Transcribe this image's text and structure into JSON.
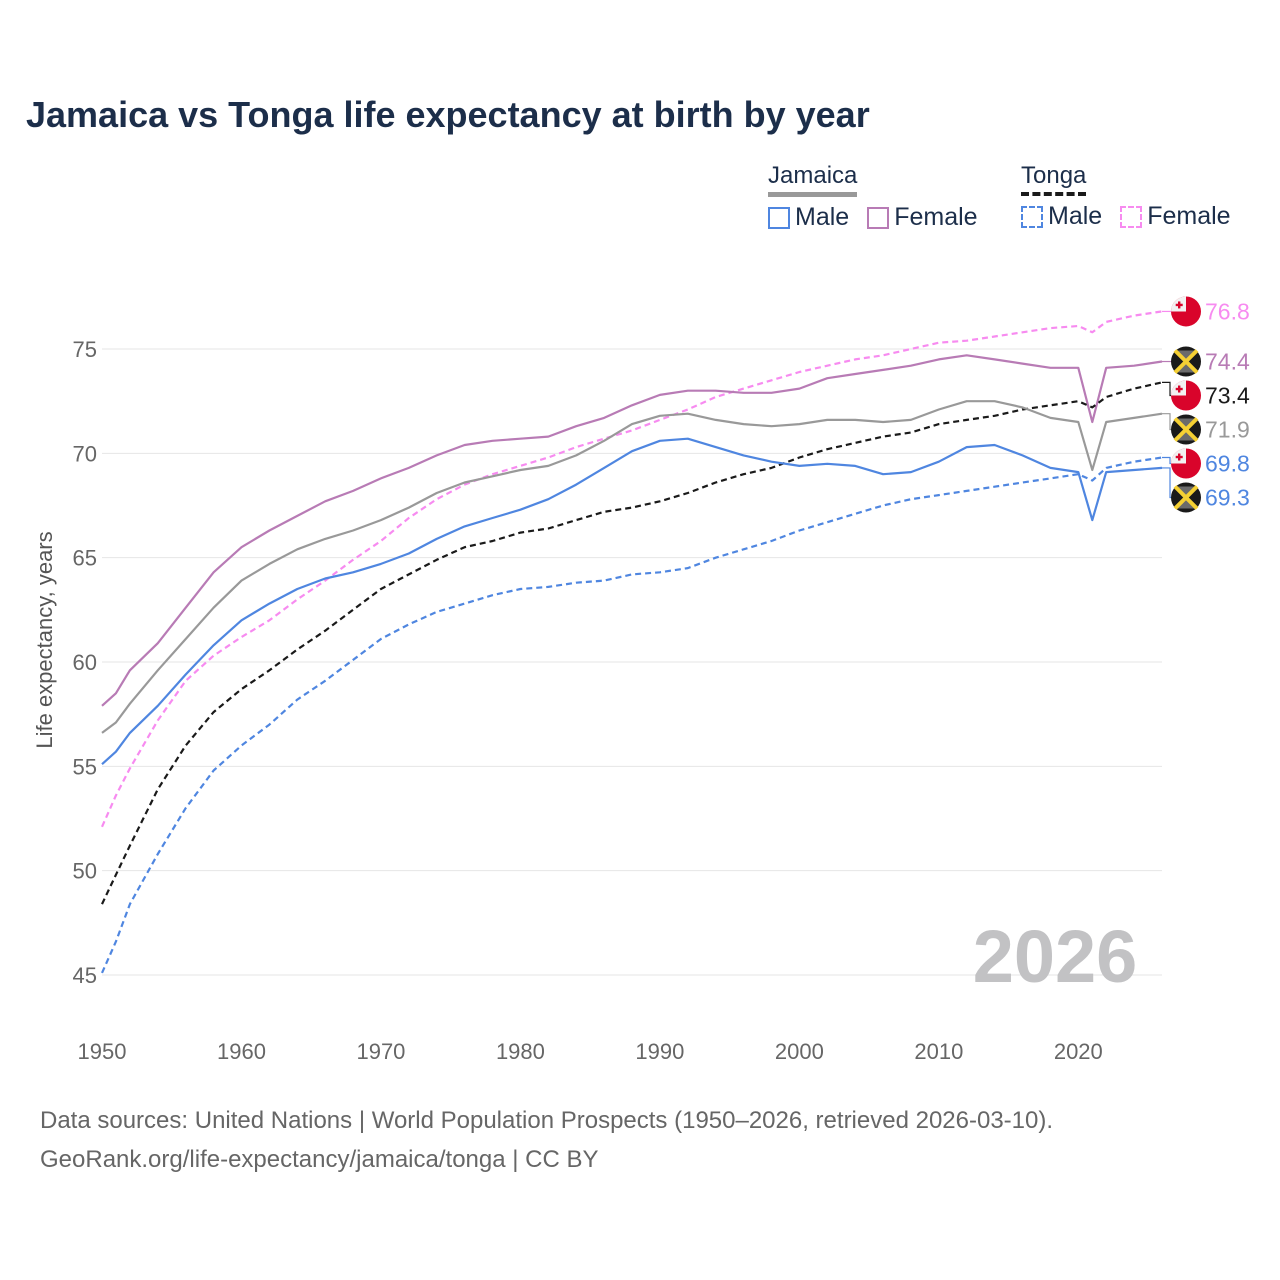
{
  "chart_data": {
    "type": "line",
    "title": "Jamaica vs Tonga life expectancy at birth by year",
    "xlabel": "",
    "ylabel": "Life expectancy, years",
    "xlim": [
      1950,
      2026
    ],
    "ylim": [
      45,
      77
    ],
    "x_ticks": [
      "1950",
      "1960",
      "1970",
      "1980",
      "1990",
      "2000",
      "2010",
      "2020"
    ],
    "y_ticks": [
      "45",
      "50",
      "55",
      "60",
      "65",
      "70",
      "75"
    ],
    "grid": true,
    "watermark_year": "2026",
    "legend": {
      "groups": [
        {
          "country": "Jamaica",
          "items": [
            "Male",
            "Female"
          ]
        },
        {
          "country": "Tonga",
          "items": [
            "Male",
            "Female"
          ]
        }
      ],
      "placement": "top-right"
    },
    "x": [
      1950,
      1951,
      1952,
      1954,
      1956,
      1958,
      1960,
      1962,
      1964,
      1966,
      1968,
      1970,
      1972,
      1974,
      1976,
      1978,
      1980,
      1982,
      1984,
      1986,
      1988,
      1990,
      1992,
      1994,
      1996,
      1998,
      2000,
      2002,
      2004,
      2006,
      2008,
      2010,
      2012,
      2014,
      2016,
      2018,
      2020,
      2021,
      2022,
      2024,
      2026
    ],
    "series": [
      {
        "name": "Tonga Female",
        "country": "Tonga",
        "color": "#f78bf0",
        "dash": true,
        "end_label": "76.8",
        "values": [
          52.1,
          53.6,
          54.9,
          57.2,
          59.1,
          60.3,
          61.2,
          62.0,
          63.0,
          63.9,
          64.9,
          65.8,
          66.9,
          67.8,
          68.5,
          69.0,
          69.4,
          69.8,
          70.3,
          70.7,
          71.1,
          71.6,
          72.1,
          72.7,
          73.1,
          73.5,
          73.9,
          74.2,
          74.5,
          74.7,
          75.0,
          75.3,
          75.4,
          75.6,
          75.8,
          76.0,
          76.1,
          75.8,
          76.3,
          76.6,
          76.8
        ]
      },
      {
        "name": "Jamaica Female",
        "country": "Jamaica",
        "color": "#b87bb5",
        "dash": false,
        "end_label": "74.4",
        "values": [
          57.9,
          58.5,
          59.6,
          60.9,
          62.6,
          64.3,
          65.5,
          66.3,
          67.0,
          67.7,
          68.2,
          68.8,
          69.3,
          69.9,
          70.4,
          70.6,
          70.7,
          70.8,
          71.3,
          71.7,
          72.3,
          72.8,
          73.0,
          73.0,
          72.9,
          72.9,
          73.1,
          73.6,
          73.8,
          74.0,
          74.2,
          74.5,
          74.7,
          74.5,
          74.3,
          74.1,
          74.1,
          71.5,
          74.1,
          74.2,
          74.4
        ]
      },
      {
        "name": "Tonga",
        "country": "Tonga",
        "color": "#1a1a1a",
        "dash": true,
        "end_label": "73.4",
        "values": [
          48.4,
          49.8,
          51.2,
          53.9,
          56.0,
          57.6,
          58.7,
          59.6,
          60.6,
          61.5,
          62.5,
          63.5,
          64.2,
          64.9,
          65.5,
          65.8,
          66.2,
          66.4,
          66.8,
          67.2,
          67.4,
          67.7,
          68.1,
          68.6,
          69.0,
          69.3,
          69.8,
          70.2,
          70.5,
          70.8,
          71.0,
          71.4,
          71.6,
          71.8,
          72.1,
          72.3,
          72.5,
          72.2,
          72.7,
          73.1,
          73.4
        ]
      },
      {
        "name": "Jamaica",
        "country": "Jamaica",
        "color": "#999999",
        "dash": false,
        "end_label": "71.9",
        "values": [
          56.6,
          57.1,
          58.0,
          59.6,
          61.1,
          62.6,
          63.9,
          64.7,
          65.4,
          65.9,
          66.3,
          66.8,
          67.4,
          68.1,
          68.6,
          68.9,
          69.2,
          69.4,
          69.9,
          70.6,
          71.4,
          71.8,
          71.9,
          71.6,
          71.4,
          71.3,
          71.4,
          71.6,
          71.6,
          71.5,
          71.6,
          72.1,
          72.5,
          72.5,
          72.2,
          71.7,
          71.5,
          69.2,
          71.5,
          71.7,
          71.9
        ]
      },
      {
        "name": "Tonga Male",
        "country": "Tonga",
        "color": "#4f86e0",
        "dash": true,
        "end_label": "69.8",
        "values": [
          45.1,
          46.6,
          48.4,
          50.8,
          53.0,
          54.8,
          56.0,
          57.0,
          58.2,
          59.1,
          60.1,
          61.1,
          61.8,
          62.4,
          62.8,
          63.2,
          63.5,
          63.6,
          63.8,
          63.9,
          64.2,
          64.3,
          64.5,
          65.0,
          65.4,
          65.8,
          66.3,
          66.7,
          67.1,
          67.5,
          67.8,
          68.0,
          68.2,
          68.4,
          68.6,
          68.8,
          69.0,
          68.7,
          69.3,
          69.6,
          69.8
        ]
      },
      {
        "name": "Jamaica Male",
        "country": "Jamaica",
        "color": "#4f86e0",
        "dash": false,
        "end_label": "69.3",
        "values": [
          55.1,
          55.7,
          56.6,
          57.9,
          59.4,
          60.8,
          62.0,
          62.8,
          63.5,
          64.0,
          64.3,
          64.7,
          65.2,
          65.9,
          66.5,
          66.9,
          67.3,
          67.8,
          68.5,
          69.3,
          70.1,
          70.6,
          70.7,
          70.3,
          69.9,
          69.6,
          69.4,
          69.5,
          69.4,
          69.0,
          69.1,
          69.6,
          70.3,
          70.4,
          69.9,
          69.3,
          69.1,
          66.8,
          69.1,
          69.2,
          69.3
        ]
      }
    ]
  },
  "legend_ui": {
    "jamaica": "Jamaica",
    "tonga": "Tonga",
    "male": "Male",
    "female": "Female",
    "jam_male_color": "#4f86e0",
    "jam_female_color": "#b87bb5",
    "ton_male_color": "#4f86e0",
    "ton_female_color": "#f78bf0"
  },
  "footer": {
    "line1": "Data sources: United Nations | World Population Prospects (1950–2026, retrieved 2026-03-10).",
    "line2": "GeoRank.org/life-expectancy/jamaica/tonga | CC BY"
  }
}
